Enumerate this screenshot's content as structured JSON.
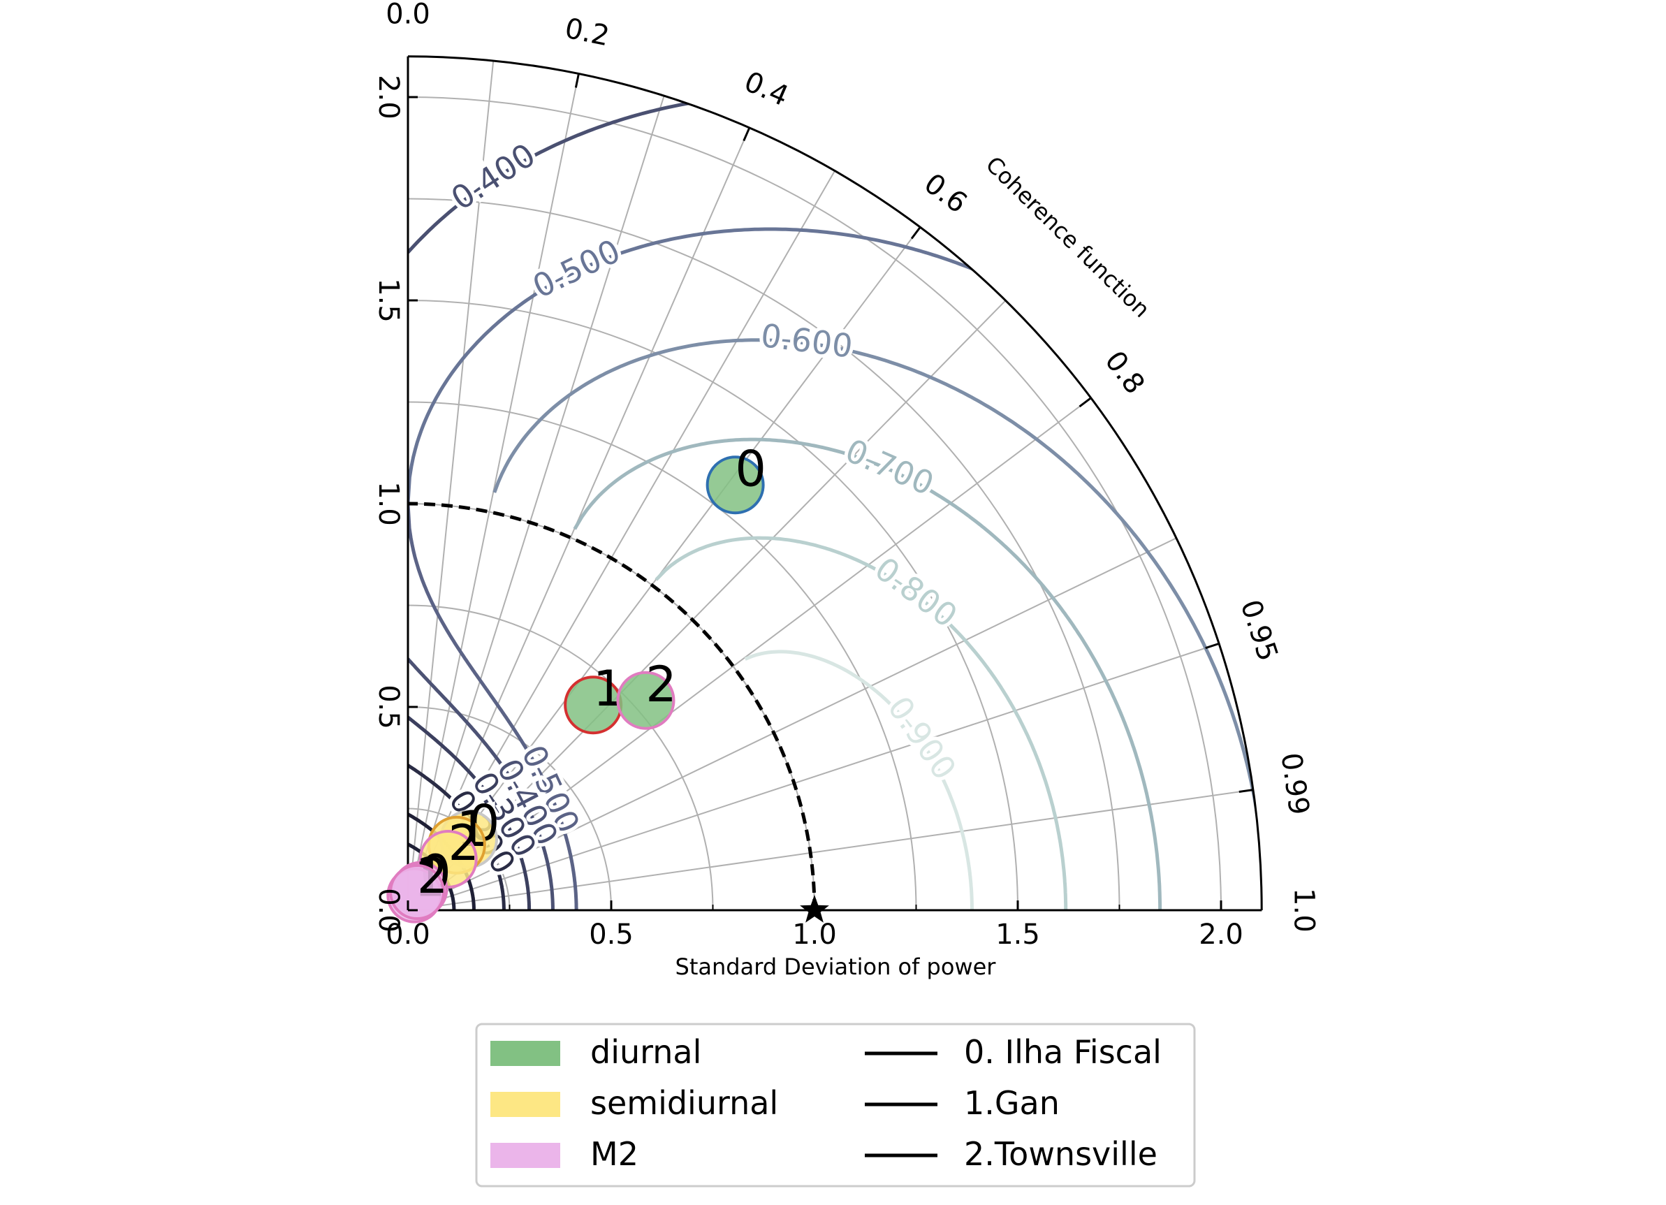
{
  "chart_data": {
    "type": "scatter",
    "subtype": "taylor-diagram",
    "xlabel": "Standard Deviation of power",
    "angular_label": "Coherence function",
    "std_max": 2.1,
    "std_ticks": [
      0.0,
      0.5,
      1.0,
      1.5,
      2.0
    ],
    "std_tick_labels": [
      "0.0",
      "0.5",
      "1.0",
      "1.5",
      "2.0"
    ],
    "left_axis_tick_labels": [
      "0.0",
      "0.5",
      "1.0",
      "1.5",
      "2.0"
    ],
    "coherence_ticks": [
      0.0,
      0.2,
      0.4,
      0.6,
      0.8,
      0.95,
      0.99,
      1.0
    ],
    "coherence_tick_labels": [
      "0.0",
      "0.2",
      "0.4",
      "0.6",
      "0.8",
      "0.95",
      "0.99",
      "1.0"
    ],
    "reference": {
      "std": 1.0,
      "coherence": 1.0,
      "marker": "star"
    },
    "skill_contours": {
      "outer_levels": [
        0.4,
        0.5,
        0.6,
        0.7,
        0.8,
        0.9
      ],
      "outer_labels": [
        "0.400",
        "0.500",
        "0.600",
        "0.700",
        "0.800",
        "0.900"
      ],
      "inner_levels": [
        0.5,
        0.4,
        0.3,
        0.2
      ],
      "inner_labels": [
        "0.500",
        "0.400",
        "0.300",
        "0.200"
      ]
    },
    "legend": {
      "bands": [
        {
          "label": "diurnal",
          "color": "#82c183"
        },
        {
          "label": "semidiurnal",
          "color": "#fde784"
        },
        {
          "label": "M2",
          "color": "#ebb5ea"
        }
      ],
      "stations": [
        {
          "label": "0. Ilha Fiscal"
        },
        {
          "label": "1.Gan"
        },
        {
          "label": "2.Townsville"
        }
      ]
    },
    "points": [
      {
        "band": "diurnal",
        "label": "0",
        "std": 1.32,
        "coherence": 0.61,
        "edge": "#2e6fb0"
      },
      {
        "band": "diurnal",
        "label": "1",
        "std": 0.68,
        "coherence": 0.67,
        "edge": "#d43030"
      },
      {
        "band": "diurnal",
        "label": "2",
        "std": 0.78,
        "coherence": 0.75,
        "edge": "#e07cc0"
      },
      {
        "band": "semidiurnal",
        "label": "0",
        "std": 0.23,
        "coherence": 0.65,
        "edge": "#c8c8c8"
      },
      {
        "band": "semidiurnal",
        "label": "1",
        "std": 0.2,
        "coherence": 0.6,
        "edge": "#e0a030"
      },
      {
        "band": "semidiurnal",
        "label": "2",
        "std": 0.16,
        "coherence": 0.62,
        "edge": "#e07cc0"
      },
      {
        "band": "M2",
        "label": "0",
        "std": 0.06,
        "coherence": 0.5,
        "edge": "#e07cc0"
      },
      {
        "band": "M2",
        "label": "1",
        "std": 0.04,
        "coherence": 0.4,
        "edge": "#e07cc0"
      },
      {
        "band": "M2",
        "label": "2",
        "std": 0.05,
        "coherence": 0.45,
        "edge": "#e07cc0"
      }
    ]
  }
}
